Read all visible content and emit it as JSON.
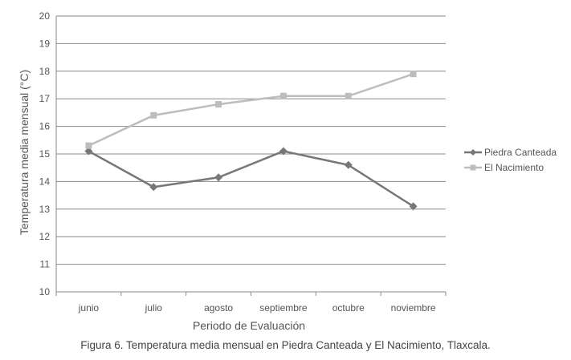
{
  "chart_data": {
    "type": "line",
    "categories": [
      "junio",
      "julio",
      "agosto",
      "septiembre",
      "octubre",
      "noviembre"
    ],
    "series": [
      {
        "name": "Piedra Canteada",
        "values": [
          15.1,
          13.8,
          14.15,
          15.1,
          14.6,
          13.1
        ],
        "color": "#777777",
        "marker": "diamond"
      },
      {
        "name": "El Nacimiento",
        "values": [
          15.3,
          16.4,
          16.8,
          17.1,
          17.1,
          17.9
        ],
        "color": "#bdbdbd",
        "marker": "square"
      }
    ],
    "xlabel": "Periodo de Evaluación",
    "ylabel": "Temperatura media mensual (°C)",
    "ylim": [
      10,
      20
    ],
    "yticks": [
      10,
      11,
      12,
      13,
      14,
      15,
      16,
      17,
      18,
      19,
      20
    ],
    "grid": true,
    "legend_position": "right"
  },
  "caption": "Figura 6. Temperatura media mensual en Piedra Canteada y El Nacimiento, Tlaxcala."
}
